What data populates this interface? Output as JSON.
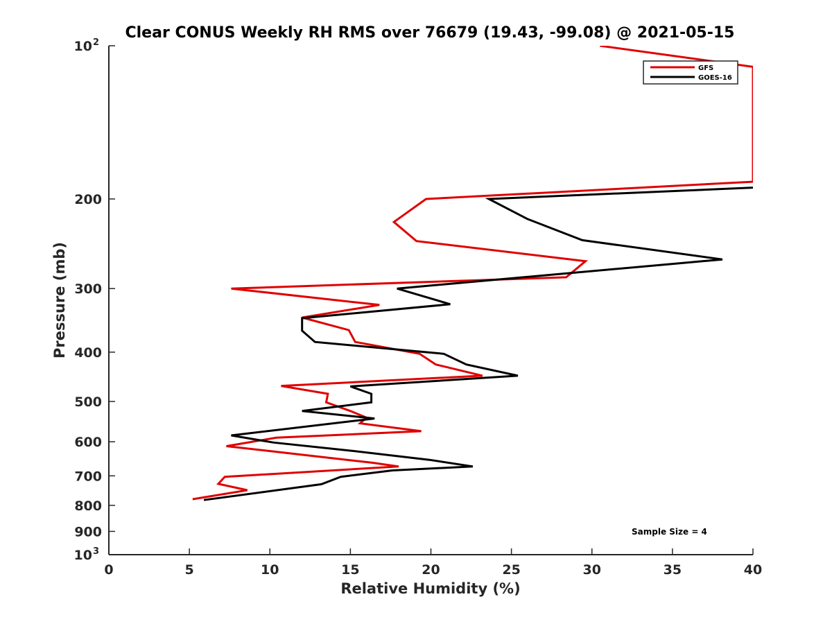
{
  "chart_data": {
    "type": "line",
    "title": "Clear CONUS Weekly RH RMS over 76679 (19.43, -99.08) @ 2021-05-15",
    "xlabel": "Relative Humidity (%)",
    "ylabel": "Pressure (mb)",
    "xlim": [
      0,
      40
    ],
    "ylim": [
      100,
      1000
    ],
    "yscale": "log",
    "y_reversed": true,
    "grid": false,
    "legend_position": "top-right",
    "x_ticks": [
      "0",
      "5",
      "10",
      "15",
      "20",
      "25",
      "30",
      "35",
      "40"
    ],
    "y_ticks": [
      {
        "value": 100,
        "base": "10",
        "exp": "2"
      },
      {
        "value": 200,
        "label": "200"
      },
      {
        "value": 300,
        "label": "300"
      },
      {
        "value": 400,
        "label": "400"
      },
      {
        "value": 500,
        "label": "500"
      },
      {
        "value": 600,
        "label": "600"
      },
      {
        "value": 700,
        "label": "700"
      },
      {
        "value": 800,
        "label": "800"
      },
      {
        "value": 900,
        "label": "900"
      },
      {
        "value": 1000,
        "base": "10",
        "exp": "3"
      }
    ],
    "series": [
      {
        "name": "GFS",
        "color": "#e00000",
        "x": [
          30.5,
          40,
          40,
          40,
          40,
          19.7,
          17.7,
          19.1,
          29.6,
          28.4,
          7.6,
          16.8,
          12.0,
          14.9,
          15.3,
          19.3,
          20.3,
          23.2,
          10.7,
          13.6,
          13.5,
          15.0,
          16.0,
          15.6,
          19.4,
          10.4,
          7.3,
          11.2,
          16.4,
          18.0,
          7.2,
          6.8,
          8.6,
          5.2
        ],
        "y": [
          100,
          110,
          114,
          116,
          185,
          200,
          222,
          242,
          265,
          285,
          300,
          323,
          342,
          362,
          382,
          403,
          423,
          445,
          466,
          483,
          502,
          522,
          538,
          552,
          572,
          589,
          612,
          632,
          660,
          671,
          703,
          726,
          747,
          778
        ]
      },
      {
        "name": "GOES-16",
        "color": "#000000",
        "x": [
          40,
          23.6,
          26.0,
          29.4,
          38.1,
          17.9,
          21.2,
          12.0,
          12.0,
          12.8,
          20.8,
          22.2,
          25.4,
          15.0,
          16.3,
          16.3,
          12.0,
          16.5,
          7.6,
          10.2,
          15.1,
          19.9,
          22.6,
          17.6,
          14.4,
          13.2,
          5.9
        ],
        "y": [
          190,
          200,
          219,
          241,
          263,
          300,
          322,
          343,
          363,
          382,
          403,
          423,
          445,
          467,
          483,
          502,
          522,
          540,
          583,
          602,
          625,
          651,
          671,
          683,
          703,
          727,
          781
        ]
      }
    ],
    "annotations": [
      "Sample Size = 4"
    ]
  }
}
